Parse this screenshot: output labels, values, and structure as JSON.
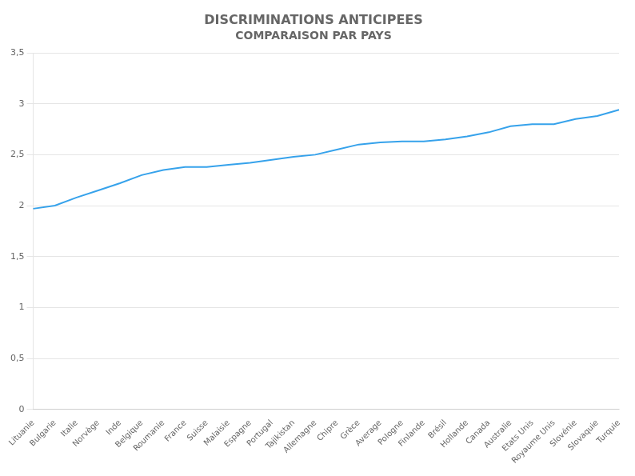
{
  "chart_data": {
    "type": "line",
    "title": "DISCRIMINATIONS ANTICIPEES",
    "subtitle": "COMPARAISON PAR PAYS",
    "categories": [
      "Lituanie",
      "Bulgarie",
      "Italie",
      "Norvège",
      "Inde",
      "Belgique",
      "Roumanie",
      "France",
      "Suisse",
      "Malaisie",
      "Espagne",
      "Portugal",
      "Tajikistan",
      "Allemagne",
      "Chipre",
      "Grèce",
      "Average",
      "Pologne",
      "Finlande",
      "Brésil",
      "Hollande",
      "Canada",
      "Australie",
      "Etats Unis",
      "Royaume Unis",
      "Slovénie",
      "Slovaquie",
      "Turquie"
    ],
    "values": [
      1.97,
      2.0,
      2.08,
      2.15,
      2.22,
      2.3,
      2.35,
      2.38,
      2.38,
      2.4,
      2.42,
      2.45,
      2.48,
      2.5,
      2.55,
      2.6,
      2.62,
      2.63,
      2.63,
      2.65,
      2.68,
      2.72,
      2.78,
      2.8,
      2.8,
      2.85,
      2.88,
      2.94
    ],
    "ylim": [
      0,
      3.5
    ],
    "yticks": [
      0,
      {
        "value": 0.5,
        "label": "0,5"
      },
      1,
      {
        "value": 1.5,
        "label": "1,5"
      },
      2,
      {
        "value": 2.5,
        "label": "2,5"
      },
      3,
      {
        "value": 3.5,
        "label": "3,5"
      }
    ],
    "grid": true
  }
}
